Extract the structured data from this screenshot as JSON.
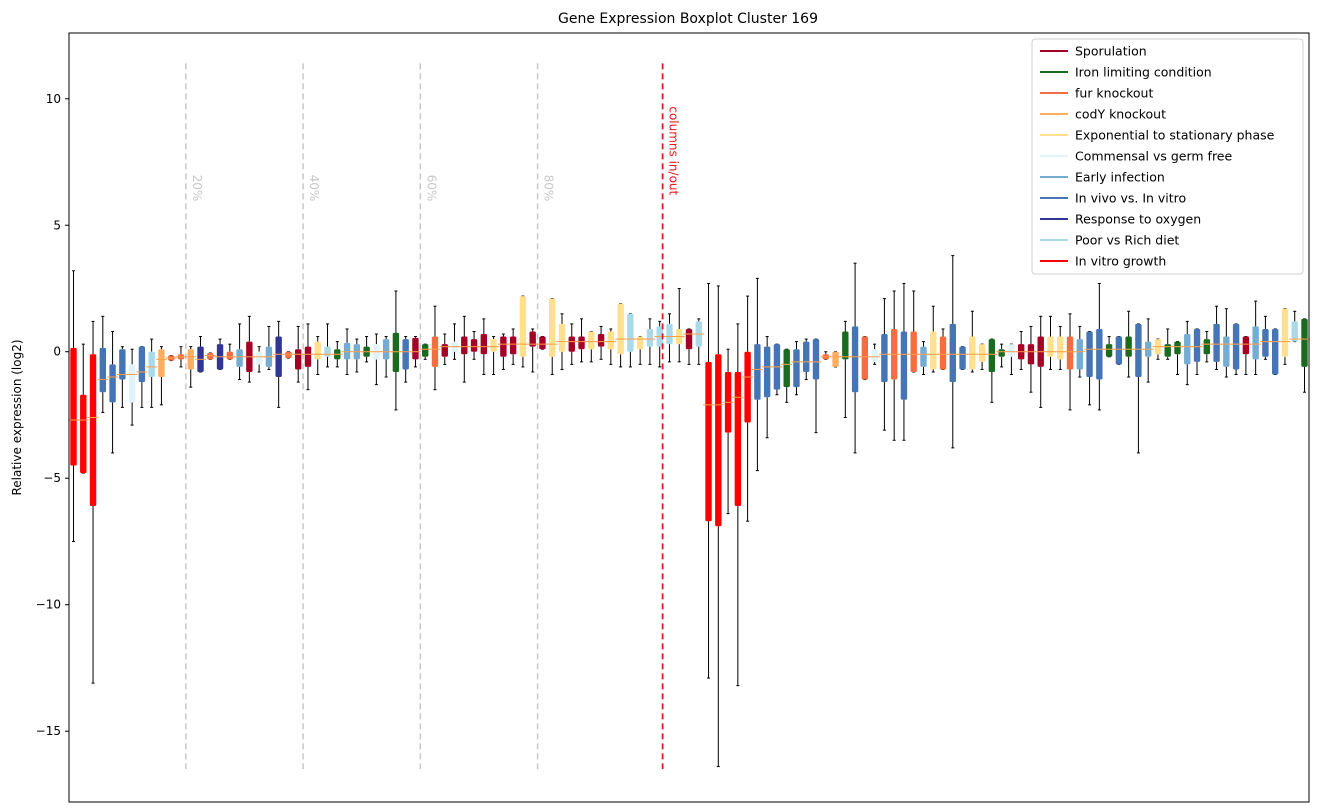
{
  "chart_data": {
    "type": "boxplot",
    "title": "Gene Expression Boxplot Cluster 169",
    "ylabel": "Relative expression (log2)",
    "xlabel": "",
    "ylim": [
      -17.8,
      12.6
    ],
    "yticks": [
      10,
      5,
      0,
      -5,
      -10,
      -15
    ],
    "grid": false,
    "legend_position": "top-right",
    "percentile_marks": [
      {
        "label": "20%",
        "index": 11.5
      },
      {
        "label": "40%",
        "index": 23.5
      },
      {
        "label": "60%",
        "index": 35.5
      },
      {
        "label": "80%",
        "index": 47.5
      }
    ],
    "split_line": {
      "label": "columns in/out",
      "index": 60.3,
      "color": "#e31a1c"
    },
    "legend": [
      {
        "name": "Sporulation",
        "color": "#a50026"
      },
      {
        "name": "Iron limiting condition",
        "color": "#1a6b1f"
      },
      {
        "name": "fur knockout",
        "color": "#f46d43"
      },
      {
        "name": "codY knockout",
        "color": "#fdae61"
      },
      {
        "name": "Exponential to stationary phase",
        "color": "#fee090"
      },
      {
        "name": "Commensal vs germ free",
        "color": "#e0f3f8"
      },
      {
        "name": "Early infection",
        "color": "#74add1"
      },
      {
        "name": "In vivo vs. In vitro",
        "color": "#4575b4"
      },
      {
        "name": "Response to oxygen",
        "color": "#313695"
      },
      {
        "name": "Poor vs Rich diet",
        "color": "#abd9e9"
      },
      {
        "name": "In vitro growth",
        "color": "#ff0000"
      }
    ],
    "boxes": [
      {
        "c": 10,
        "q1": -4.5,
        "med": -2.7,
        "q3": 0.15,
        "lo": -7.5,
        "hi": 3.2
      },
      {
        "c": 10,
        "q1": -4.8,
        "med": -2.7,
        "q3": -1.7,
        "lo": -4.8,
        "hi": 0.3
      },
      {
        "c": 10,
        "q1": -6.1,
        "med": -2.6,
        "q3": -0.1,
        "lo": -13.1,
        "hi": 1.2
      },
      {
        "c": 7,
        "q1": -1.6,
        "med": -1.1,
        "q3": 0.15,
        "lo": -2.4,
        "hi": 1.4
      },
      {
        "c": 7,
        "q1": -2.0,
        "med": -1.0,
        "q3": -0.5,
        "lo": -4.0,
        "hi": 0.8
      },
      {
        "c": 7,
        "q1": -1.1,
        "med": -0.9,
        "q3": 0.1,
        "lo": -2.2,
        "hi": 0.2
      },
      {
        "c": 5,
        "q1": -2.0,
        "med": -0.9,
        "q3": -0.5,
        "lo": -2.9,
        "hi": 0.1
      },
      {
        "c": 7,
        "q1": -1.2,
        "med": -0.8,
        "q3": 0.2,
        "lo": -2.2,
        "hi": 0.2
      },
      {
        "c": 9,
        "q1": -1.0,
        "med": -0.6,
        "q3": 0.0,
        "lo": -2.2,
        "hi": 0.5
      },
      {
        "c": 3,
        "q1": -1.0,
        "med": -0.3,
        "q3": 0.1,
        "lo": -2.1,
        "hi": 0.2
      },
      {
        "c": 2,
        "q1": -0.35,
        "med": -0.25,
        "q3": -0.15,
        "lo": -0.35,
        "hi": -0.15
      },
      {
        "c": 2,
        "q1": -0.3,
        "med": -0.2,
        "q3": -0.1,
        "lo": -0.6,
        "hi": 0.2
      },
      {
        "c": 3,
        "q1": -0.7,
        "med": -0.2,
        "q3": 0.1,
        "lo": -1.4,
        "hi": 0.2
      },
      {
        "c": 8,
        "q1": -0.8,
        "med": -0.3,
        "q3": 0.2,
        "lo": -0.8,
        "hi": 0.6
      },
      {
        "c": 2,
        "q1": -0.3,
        "med": -0.15,
        "q3": -0.05,
        "lo": -0.3,
        "hi": -0.05
      },
      {
        "c": 8,
        "q1": -0.7,
        "med": -0.2,
        "q3": 0.3,
        "lo": -0.7,
        "hi": 0.5
      },
      {
        "c": 2,
        "q1": -0.3,
        "med": -0.2,
        "q3": 0.0,
        "lo": -0.3,
        "hi": 0.3
      },
      {
        "c": 6,
        "q1": -0.6,
        "med": -0.2,
        "q3": 0.1,
        "lo": -1.1,
        "hi": 1.1
      },
      {
        "c": 0,
        "q1": -0.8,
        "med": -0.2,
        "q3": 0.4,
        "lo": -1.2,
        "hi": 1.4
      },
      {
        "c": 5,
        "q1": -0.5,
        "med": -0.2,
        "q3": 0.0,
        "lo": -0.8,
        "hi": 0.2
      },
      {
        "c": 6,
        "q1": -0.6,
        "med": -0.2,
        "q3": 0.2,
        "lo": -0.7,
        "hi": 1.0
      },
      {
        "c": 8,
        "q1": -1.0,
        "med": -0.1,
        "q3": 0.6,
        "lo": -2.2,
        "hi": 1.2
      },
      {
        "c": 2,
        "q1": -0.25,
        "med": -0.1,
        "q3": 0.0,
        "lo": -0.25,
        "hi": 0.0
      },
      {
        "c": 0,
        "q1": -0.7,
        "med": -0.1,
        "q3": 0.1,
        "lo": -1.2,
        "hi": 1.0
      },
      {
        "c": 0,
        "q1": -0.6,
        "med": -0.1,
        "q3": 0.2,
        "lo": -1.5,
        "hi": 1.1
      },
      {
        "c": 4,
        "q1": -0.3,
        "med": -0.1,
        "q3": 0.4,
        "lo": -0.9,
        "hi": 0.6
      },
      {
        "c": 9,
        "q1": -0.2,
        "med": -0.1,
        "q3": 0.2,
        "lo": -0.6,
        "hi": 1.1
      },
      {
        "c": 1,
        "q1": -0.3,
        "med": -0.1,
        "q3": 0.1,
        "lo": -0.6,
        "hi": 0.4
      },
      {
        "c": 6,
        "q1": -0.3,
        "med": 0.0,
        "q3": 0.35,
        "lo": -0.9,
        "hi": 0.9
      },
      {
        "c": 6,
        "q1": -0.3,
        "med": 0.0,
        "q3": 0.3,
        "lo": -0.8,
        "hi": 0.5
      },
      {
        "c": 1,
        "q1": -0.2,
        "med": 0.0,
        "q3": 0.2,
        "lo": -0.4,
        "hi": 0.6
      },
      {
        "c": 5,
        "q1": -0.3,
        "med": 0.0,
        "q3": 0.3,
        "lo": -1.3,
        "hi": 0.7
      },
      {
        "c": 6,
        "q1": -0.3,
        "med": 0.0,
        "q3": 0.5,
        "lo": -1.0,
        "hi": 0.6
      },
      {
        "c": 1,
        "q1": -0.8,
        "med": 0.0,
        "q3": 0.75,
        "lo": -2.3,
        "hi": 2.4
      },
      {
        "c": 7,
        "q1": -0.7,
        "med": 0.0,
        "q3": 0.5,
        "lo": -1.2,
        "hi": 0.6
      },
      {
        "c": 0,
        "q1": -0.3,
        "med": 0.0,
        "q3": 0.55,
        "lo": -0.6,
        "hi": 0.6
      },
      {
        "c": 1,
        "q1": -0.2,
        "med": 0.1,
        "q3": 0.3,
        "lo": -0.3,
        "hi": 0.3
      },
      {
        "c": 2,
        "q1": -0.6,
        "med": 0.1,
        "q3": 0.6,
        "lo": -1.5,
        "hi": 1.8
      },
      {
        "c": 0,
        "q1": -0.2,
        "med": 0.2,
        "q3": 0.3,
        "lo": -0.5,
        "hi": 0.7
      },
      {
        "c": 5,
        "q1": 0.0,
        "med": 0.2,
        "q3": 0.4,
        "lo": -0.3,
        "hi": 1.1
      },
      {
        "c": 0,
        "q1": -0.1,
        "med": 0.2,
        "q3": 0.6,
        "lo": -1.2,
        "hi": 1.4
      },
      {
        "c": 0,
        "q1": 0.0,
        "med": 0.2,
        "q3": 0.5,
        "lo": -0.3,
        "hi": 0.8
      },
      {
        "c": 0,
        "q1": -0.1,
        "med": 0.2,
        "q3": 0.7,
        "lo": -0.9,
        "hi": 1.3
      },
      {
        "c": 4,
        "q1": 0.0,
        "med": 0.2,
        "q3": 0.5,
        "lo": -0.9,
        "hi": 0.6
      },
      {
        "c": 0,
        "q1": -0.2,
        "med": 0.3,
        "q3": 0.6,
        "lo": -0.7,
        "hi": 0.7
      },
      {
        "c": 0,
        "q1": -0.1,
        "med": 0.3,
        "q3": 0.6,
        "lo": -0.5,
        "hi": 0.9
      },
      {
        "c": 4,
        "q1": -0.2,
        "med": 0.3,
        "q3": 2.2,
        "lo": -0.6,
        "hi": 2.2
      },
      {
        "c": 0,
        "q1": 0.2,
        "med": 0.3,
        "q3": 0.8,
        "lo": -0.8,
        "hi": 0.9
      },
      {
        "c": 0,
        "q1": 0.1,
        "med": 0.3,
        "q3": 0.6,
        "lo": 0.1,
        "hi": 0.6
      },
      {
        "c": 4,
        "q1": -0.2,
        "med": 0.3,
        "q3": 2.1,
        "lo": -0.9,
        "hi": 2.1
      },
      {
        "c": 4,
        "q1": 0.0,
        "med": 0.4,
        "q3": 1.1,
        "lo": -0.7,
        "hi": 1.5
      },
      {
        "c": 0,
        "q1": 0.0,
        "med": 0.4,
        "q3": 0.6,
        "lo": -0.5,
        "hi": 1.1
      },
      {
        "c": 0,
        "q1": 0.1,
        "med": 0.4,
        "q3": 0.6,
        "lo": -0.4,
        "hi": 1.3
      },
      {
        "c": 4,
        "q1": 0.1,
        "med": 0.4,
        "q3": 0.8,
        "lo": -0.4,
        "hi": 0.8
      },
      {
        "c": 0,
        "q1": 0.2,
        "med": 0.4,
        "q3": 0.7,
        "lo": -0.3,
        "hi": 1.0
      },
      {
        "c": 4,
        "q1": 0.1,
        "med": 0.4,
        "q3": 0.8,
        "lo": -0.5,
        "hi": 0.9
      },
      {
        "c": 4,
        "q1": -0.1,
        "med": 0.5,
        "q3": 1.9,
        "lo": -0.6,
        "hi": 1.9
      },
      {
        "c": 9,
        "q1": 0.0,
        "med": 0.5,
        "q3": 1.5,
        "lo": -0.6,
        "hi": 1.5
      },
      {
        "c": 4,
        "q1": 0.1,
        "med": 0.5,
        "q3": 0.6,
        "lo": -0.5,
        "hi": 0.6
      },
      {
        "c": 9,
        "q1": 0.2,
        "med": 0.5,
        "q3": 0.9,
        "lo": -0.5,
        "hi": 1.3
      },
      {
        "c": 9,
        "q1": 0.2,
        "med": 0.6,
        "q3": 1.0,
        "lo": -0.6,
        "hi": 1.2
      },
      {
        "c": 9,
        "q1": 0.3,
        "med": 0.6,
        "q3": 1.1,
        "lo": -0.4,
        "hi": 1.5
      },
      {
        "c": 4,
        "q1": 0.3,
        "med": 0.6,
        "q3": 0.9,
        "lo": -0.4,
        "hi": 2.5
      },
      {
        "c": 0,
        "q1": 0.1,
        "med": 0.7,
        "q3": 0.9,
        "lo": -0.5,
        "hi": 0.9
      },
      {
        "c": 9,
        "q1": 0.2,
        "med": 0.7,
        "q3": 1.2,
        "lo": -0.5,
        "hi": 1.3
      },
      {
        "c": 10,
        "q1": -6.7,
        "med": -2.1,
        "q3": -0.4,
        "lo": -12.9,
        "hi": 2.7
      },
      {
        "c": 10,
        "q1": -6.9,
        "med": -2.1,
        "q3": -0.1,
        "lo": -16.4,
        "hi": 2.6
      },
      {
        "c": 10,
        "q1": -3.2,
        "med": -2.0,
        "q3": -0.8,
        "lo": -6.4,
        "hi": 0.1
      },
      {
        "c": 10,
        "q1": -6.1,
        "med": -1.8,
        "q3": -0.8,
        "lo": -13.2,
        "hi": 1.1
      },
      {
        "c": 10,
        "q1": -2.8,
        "med": -1.0,
        "q3": 0.0,
        "lo": -6.7,
        "hi": 2.2
      },
      {
        "c": 7,
        "q1": -1.9,
        "med": -0.7,
        "q3": 0.3,
        "lo": -4.7,
        "hi": 2.9
      },
      {
        "c": 7,
        "q1": -1.8,
        "med": -0.6,
        "q3": 0.2,
        "lo": -3.4,
        "hi": 0.6
      },
      {
        "c": 7,
        "q1": -1.5,
        "med": -0.6,
        "q3": 0.3,
        "lo": -1.7,
        "hi": 0.3
      },
      {
        "c": 1,
        "q1": -1.4,
        "med": -0.5,
        "q3": 0.1,
        "lo": -2.0,
        "hi": 0.1
      },
      {
        "c": 7,
        "q1": -1.4,
        "med": -0.4,
        "q3": 0.1,
        "lo": -1.7,
        "hi": 0.4
      },
      {
        "c": 7,
        "q1": -0.8,
        "med": -0.4,
        "q3": 0.4,
        "lo": -1.1,
        "hi": 0.5
      },
      {
        "c": 7,
        "q1": -1.1,
        "med": -0.4,
        "q3": 0.5,
        "lo": -3.2,
        "hi": 0.5
      },
      {
        "c": 2,
        "q1": -0.3,
        "med": -0.2,
        "q3": -0.1,
        "lo": -0.3,
        "hi": 0.0
      },
      {
        "c": 3,
        "q1": -0.6,
        "med": -0.2,
        "q3": 0.0,
        "lo": -0.6,
        "hi": 0.0
      },
      {
        "c": 1,
        "q1": -0.3,
        "med": -0.2,
        "q3": 0.8,
        "lo": -2.6,
        "hi": 1.2
      },
      {
        "c": 7,
        "q1": -1.6,
        "med": -0.2,
        "q3": 1.0,
        "lo": -4.0,
        "hi": 3.5
      },
      {
        "c": 2,
        "q1": -1.1,
        "med": -0.2,
        "q3": 0.6,
        "lo": -1.1,
        "hi": 0.6
      },
      {
        "c": 5,
        "q1": -0.4,
        "med": -0.2,
        "q3": 0.1,
        "lo": -0.5,
        "hi": 0.3
      },
      {
        "c": 7,
        "q1": -1.2,
        "med": -0.1,
        "q3": 0.7,
        "lo": -3.1,
        "hi": 2.1
      },
      {
        "c": 2,
        "q1": -1.1,
        "med": -0.1,
        "q3": 0.9,
        "lo": -3.5,
        "hi": 2.4
      },
      {
        "c": 7,
        "q1": -1.9,
        "med": -0.1,
        "q3": 0.8,
        "lo": -3.5,
        "hi": 2.7
      },
      {
        "c": 2,
        "q1": -0.8,
        "med": -0.1,
        "q3": 0.8,
        "lo": -0.8,
        "hi": 2.4
      },
      {
        "c": 6,
        "q1": -0.6,
        "med": -0.1,
        "q3": 0.2,
        "lo": -0.9,
        "hi": 0.4
      },
      {
        "c": 4,
        "q1": -0.7,
        "med": -0.1,
        "q3": 0.8,
        "lo": -0.8,
        "hi": 1.8
      },
      {
        "c": 2,
        "q1": -0.7,
        "med": -0.1,
        "q3": 0.6,
        "lo": -0.7,
        "hi": 0.9
      },
      {
        "c": 7,
        "q1": -1.2,
        "med": -0.1,
        "q3": 1.1,
        "lo": -3.8,
        "hi": 3.8
      },
      {
        "c": 7,
        "q1": -0.7,
        "med": -0.1,
        "q3": 0.2,
        "lo": -0.7,
        "hi": 0.2
      },
      {
        "c": 4,
        "q1": -0.7,
        "med": -0.1,
        "q3": 0.6,
        "lo": -0.8,
        "hi": 1.6
      },
      {
        "c": 4,
        "q1": -0.4,
        "med": -0.1,
        "q3": 0.3,
        "lo": -0.7,
        "hi": 0.3
      },
      {
        "c": 1,
        "q1": -0.8,
        "med": -0.1,
        "q3": 0.5,
        "lo": -2.0,
        "hi": 0.5
      },
      {
        "c": 1,
        "q1": -0.2,
        "med": 0.0,
        "q3": 0.1,
        "lo": -0.6,
        "hi": 0.3
      },
      {
        "c": 5,
        "q1": -0.2,
        "med": 0.0,
        "q3": 0.3,
        "lo": -0.9,
        "hi": 0.3
      },
      {
        "c": 0,
        "q1": -0.3,
        "med": 0.0,
        "q3": 0.3,
        "lo": -0.7,
        "hi": 0.8
      },
      {
        "c": 0,
        "q1": -0.5,
        "med": 0.0,
        "q3": 0.3,
        "lo": -1.6,
        "hi": 1.0
      },
      {
        "c": 0,
        "q1": -0.6,
        "med": 0.0,
        "q3": 0.6,
        "lo": -2.2,
        "hi": 1.4
      },
      {
        "c": 4,
        "q1": -0.2,
        "med": 0.0,
        "q3": 0.6,
        "lo": -0.7,
        "hi": 1.4
      },
      {
        "c": 4,
        "q1": -0.3,
        "med": 0.0,
        "q3": 0.6,
        "lo": -0.7,
        "hi": 1.0
      },
      {
        "c": 2,
        "q1": -0.7,
        "med": 0.0,
        "q3": 0.6,
        "lo": -2.3,
        "hi": 1.5
      },
      {
        "c": 6,
        "q1": -0.7,
        "med": 0.0,
        "q3": 0.5,
        "lo": -1.0,
        "hi": 1.0
      },
      {
        "c": 7,
        "q1": -1.0,
        "med": 0.1,
        "q3": 0.8,
        "lo": -2.1,
        "hi": 0.8
      },
      {
        "c": 7,
        "q1": -1.1,
        "med": 0.1,
        "q3": 0.9,
        "lo": -2.3,
        "hi": 2.7
      },
      {
        "c": 1,
        "q1": -0.2,
        "med": 0.1,
        "q3": 0.3,
        "lo": -0.2,
        "hi": 0.6
      },
      {
        "c": 7,
        "q1": -0.5,
        "med": 0.1,
        "q3": 0.6,
        "lo": -0.5,
        "hi": 0.6
      },
      {
        "c": 1,
        "q1": -0.2,
        "med": 0.1,
        "q3": 0.6,
        "lo": -1.0,
        "hi": 1.6
      },
      {
        "c": 7,
        "q1": -1.0,
        "med": 0.1,
        "q3": 1.1,
        "lo": -4.0,
        "hi": 1.1
      },
      {
        "c": 6,
        "q1": -0.2,
        "med": 0.1,
        "q3": 0.4,
        "lo": -1.2,
        "hi": 1.3
      },
      {
        "c": 4,
        "q1": -0.1,
        "med": 0.2,
        "q3": 0.5,
        "lo": -0.3,
        "hi": 0.5
      },
      {
        "c": 1,
        "q1": -0.2,
        "med": 0.2,
        "q3": 0.3,
        "lo": -0.3,
        "hi": 0.9
      },
      {
        "c": 1,
        "q1": -0.1,
        "med": 0.2,
        "q3": 0.4,
        "lo": -0.9,
        "hi": 0.4
      },
      {
        "c": 6,
        "q1": -0.5,
        "med": 0.2,
        "q3": 0.7,
        "lo": -1.3,
        "hi": 1.2
      },
      {
        "c": 7,
        "q1": -0.4,
        "med": 0.2,
        "q3": 0.9,
        "lo": -0.9,
        "hi": 0.9
      },
      {
        "c": 1,
        "q1": -0.1,
        "med": 0.3,
        "q3": 0.5,
        "lo": -0.4,
        "hi": 0.8
      },
      {
        "c": 7,
        "q1": -0.4,
        "med": 0.3,
        "q3": 1.1,
        "lo": -0.7,
        "hi": 1.8
      },
      {
        "c": 6,
        "q1": -0.6,
        "med": 0.3,
        "q3": 0.6,
        "lo": -1.0,
        "hi": 1.7
      },
      {
        "c": 7,
        "q1": -0.7,
        "med": 0.3,
        "q3": 1.1,
        "lo": -0.9,
        "hi": 1.1
      },
      {
        "c": 0,
        "q1": -0.1,
        "med": 0.3,
        "q3": 0.6,
        "lo": -0.9,
        "hi": 0.6
      },
      {
        "c": 6,
        "q1": -0.3,
        "med": 0.3,
        "q3": 1.0,
        "lo": -0.9,
        "hi": 2.0
      },
      {
        "c": 7,
        "q1": -0.2,
        "med": 0.4,
        "q3": 0.9,
        "lo": -0.3,
        "hi": 1.4
      },
      {
        "c": 7,
        "q1": -0.9,
        "med": 0.4,
        "q3": 0.9,
        "lo": -0.9,
        "hi": 0.9
      },
      {
        "c": 4,
        "q1": -0.2,
        "med": 0.4,
        "q3": 1.7,
        "lo": -0.5,
        "hi": 1.7
      },
      {
        "c": 9,
        "q1": 0.4,
        "med": 0.5,
        "q3": 1.2,
        "lo": 0.4,
        "hi": 1.6
      },
      {
        "c": 1,
        "q1": -0.6,
        "med": 0.5,
        "q3": 1.3,
        "lo": -1.6,
        "hi": 1.3
      }
    ]
  }
}
